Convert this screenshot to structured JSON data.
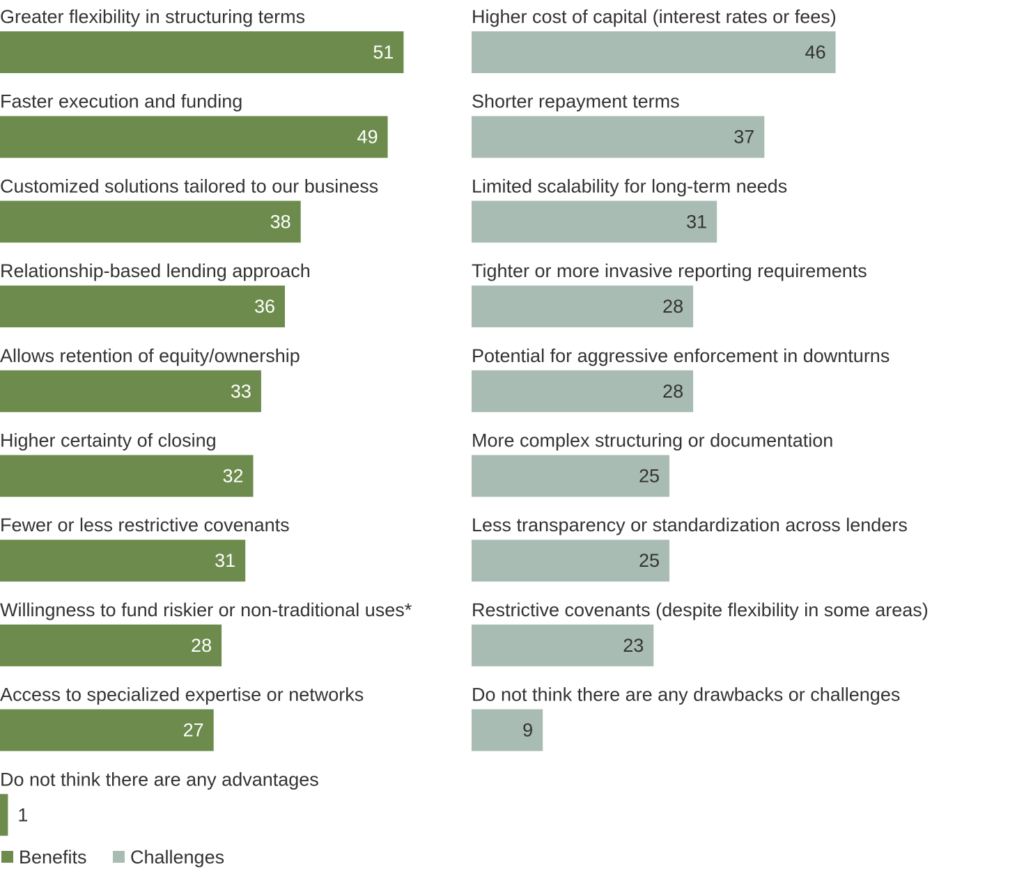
{
  "chart_data": {
    "type": "bar",
    "orientation": "horizontal",
    "colors": {
      "benefits": "#6c8b4c",
      "challenges": "#a9bcb3",
      "benefits_label": "#ffffff",
      "challenges_label": "#333333",
      "text": "#333333"
    },
    "series": [
      {
        "name": "Benefits",
        "categories": [
          "Greater flexibility in structuring terms",
          "Faster execution and funding",
          "Customized solutions tailored to our business",
          "Relationship-based lending approach",
          "Allows retention of equity/ownership",
          "Higher certainty of closing",
          "Fewer or less restrictive covenants",
          "Willingness to fund riskier or non-traditional uses*",
          "Access to specialized expertise or networks",
          "Do not think there are any advantages"
        ],
        "values": [
          51,
          49,
          38,
          36,
          33,
          32,
          31,
          28,
          27,
          1
        ]
      },
      {
        "name": "Challenges",
        "categories": [
          "Higher cost of capital (interest rates or fees)",
          "Shorter repayment terms",
          "Limited scalability for long-term needs",
          "Tighter or more invasive reporting requirements",
          "Potential for aggressive enforcement in downturns",
          "More complex structuring or documentation",
          "Less transparency or standardization across lenders",
          "Restrictive covenants (despite flexibility in some areas)",
          "Do not think there are any drawbacks or challenges"
        ],
        "values": [
          46,
          37,
          31,
          28,
          28,
          25,
          25,
          23,
          9
        ]
      }
    ],
    "legend": [
      "Benefits",
      "Challenges"
    ],
    "legend_position": "bottom-left",
    "grid": false
  }
}
